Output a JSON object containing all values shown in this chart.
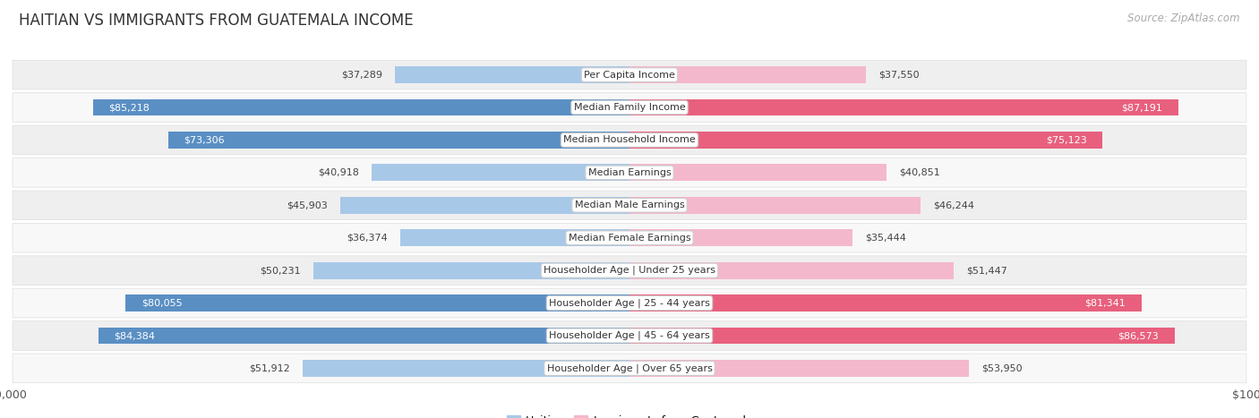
{
  "title": "HAITIAN VS IMMIGRANTS FROM GUATEMALA INCOME",
  "source": "Source: ZipAtlas.com",
  "categories": [
    "Per Capita Income",
    "Median Family Income",
    "Median Household Income",
    "Median Earnings",
    "Median Male Earnings",
    "Median Female Earnings",
    "Householder Age | Under 25 years",
    "Householder Age | 25 - 44 years",
    "Householder Age | 45 - 64 years",
    "Householder Age | Over 65 years"
  ],
  "haitian_values": [
    37289,
    85218,
    73306,
    40918,
    45903,
    36374,
    50231,
    80055,
    84384,
    51912
  ],
  "guatemala_values": [
    37550,
    87191,
    75123,
    40851,
    46244,
    35444,
    51447,
    81341,
    86573,
    53950
  ],
  "haitian_labels": [
    "$37,289",
    "$85,218",
    "$73,306",
    "$40,918",
    "$45,903",
    "$36,374",
    "$50,231",
    "$80,055",
    "$84,384",
    "$51,912"
  ],
  "guatemala_labels": [
    "$37,550",
    "$87,191",
    "$75,123",
    "$40,851",
    "$46,244",
    "$35,444",
    "$51,447",
    "$81,341",
    "$86,573",
    "$53,950"
  ],
  "haitian_color_light": "#a8c8e8",
  "haitian_color_dark": "#5a8fc4",
  "guatemala_color_light": "#f4b8cc",
  "guatemala_color_dark": "#e8607e",
  "max_value": 100000,
  "background_color": "#ffffff",
  "row_bg_alt": "#efefef",
  "row_bg_main": "#f8f8f8",
  "label_fontsize": 8.5,
  "title_fontsize": 12,
  "legend_labels": [
    "Haitian",
    "Immigrants from Guatemala"
  ],
  "haitian_dark_threshold": 65000,
  "guatemala_dark_threshold": 65000
}
